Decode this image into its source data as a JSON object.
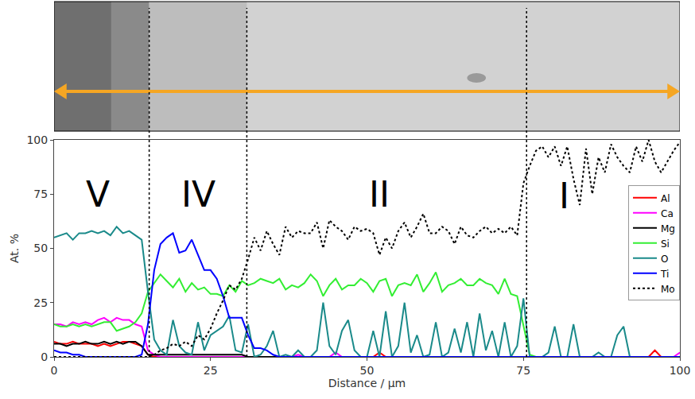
{
  "chart_data": {
    "type": "line",
    "xlabel": "Distance / μm",
    "ylabel": "At. %",
    "xlim": [
      0,
      100
    ],
    "ylim": [
      0,
      100
    ],
    "xticks": [
      0,
      25,
      50,
      75,
      100
    ],
    "yticks": [
      0,
      25,
      50,
      75,
      100
    ],
    "grid": false,
    "legend": "right",
    "boundaries": [
      15.2,
      30.8,
      75.5
    ],
    "annotations": [
      {
        "text": "V",
        "x": 7,
        "y": 75
      },
      {
        "text": "IV",
        "x": 23,
        "y": 75
      },
      {
        "text": "II",
        "x": 52,
        "y": 75
      },
      {
        "text": "I",
        "x": 81.5,
        "y": 74
      }
    ],
    "x": [
      0,
      1,
      2,
      3,
      4,
      5,
      6,
      7,
      8,
      9,
      10,
      11,
      12,
      13,
      14,
      15,
      16,
      17,
      18,
      19,
      20,
      21,
      22,
      23,
      24,
      25,
      26,
      27,
      28,
      29,
      30,
      31,
      32,
      33,
      34,
      35,
      36,
      37,
      38,
      39,
      40,
      41,
      42,
      43,
      44,
      45,
      46,
      47,
      48,
      49,
      50,
      51,
      52,
      53,
      54,
      55,
      56,
      57,
      58,
      59,
      60,
      61,
      62,
      63,
      64,
      65,
      66,
      67,
      68,
      69,
      70,
      71,
      72,
      73,
      74,
      75,
      76,
      77,
      78,
      79,
      80,
      81,
      82,
      83,
      84,
      85,
      86,
      87,
      88,
      89,
      90,
      91,
      92,
      93,
      94,
      95,
      96,
      97,
      98,
      99,
      100
    ],
    "series": [
      {
        "name": "Al",
        "color": "#ff0000",
        "line_style": "solid",
        "values": [
          7,
          6,
          6,
          7,
          6,
          6,
          6,
          5,
          6,
          5,
          6,
          7,
          7,
          6,
          5,
          1,
          0,
          0,
          0,
          0,
          0,
          0,
          0,
          0,
          0,
          0,
          0,
          0,
          0,
          0,
          0,
          0,
          0,
          0,
          0,
          0,
          0,
          0,
          0,
          0,
          0,
          0,
          0,
          0,
          0,
          0,
          0,
          0,
          0,
          0,
          0,
          0,
          2,
          0,
          0,
          0,
          0,
          0,
          0,
          0,
          0,
          0,
          0,
          0,
          0,
          0,
          0,
          0,
          0,
          0,
          0,
          0,
          0,
          0,
          0,
          0,
          0,
          0,
          0,
          0,
          0,
          0,
          0,
          0,
          0,
          0,
          0,
          0,
          0,
          0,
          0,
          0,
          0,
          0,
          0,
          0,
          3,
          0,
          0,
          0,
          0
        ]
      },
      {
        "name": "Ca",
        "color": "#ff00ff",
        "line_style": "solid",
        "values": [
          15,
          15,
          14,
          16,
          15,
          16,
          15,
          17,
          18,
          16,
          18,
          17,
          17,
          15,
          14,
          3,
          1,
          0,
          0,
          0,
          0,
          0,
          0,
          0,
          0,
          0,
          0,
          0,
          0,
          0,
          0,
          0,
          0,
          0,
          0,
          0,
          0,
          0,
          0,
          1,
          0,
          0,
          0,
          0,
          0,
          2,
          0,
          0,
          0,
          0,
          0,
          0,
          0,
          0,
          0,
          0,
          0,
          0,
          0,
          0,
          0,
          0,
          0,
          0,
          0,
          0,
          0,
          0,
          0,
          0,
          0,
          0,
          0,
          0,
          0,
          0,
          0,
          0,
          0,
          0,
          0,
          0,
          0,
          0,
          0,
          0,
          0,
          0,
          0,
          0,
          0,
          0,
          0,
          0,
          0,
          0,
          0,
          0,
          0,
          0,
          2
        ]
      },
      {
        "name": "Mg",
        "color": "#000000",
        "line_style": "solid",
        "values": [
          6,
          6,
          5,
          6,
          6,
          7,
          6,
          6,
          7,
          6,
          7,
          6,
          7,
          7,
          5,
          1,
          1,
          1,
          1,
          1,
          1,
          1,
          1,
          1,
          1,
          1,
          1,
          1,
          1,
          1,
          1,
          0,
          0,
          0,
          0,
          0,
          0,
          0,
          0,
          0,
          0,
          0,
          0,
          0,
          0,
          0,
          0,
          0,
          0,
          0,
          0,
          0,
          0,
          0,
          0,
          0,
          0,
          0,
          0,
          0,
          0,
          0,
          0,
          0,
          0,
          0,
          0,
          0,
          0,
          0,
          0,
          0,
          0,
          0,
          0,
          0,
          0,
          0,
          0,
          0,
          0,
          0,
          0,
          0,
          0,
          0,
          0,
          0,
          0,
          0,
          0,
          0,
          0,
          0,
          0,
          0,
          0,
          0,
          0,
          0,
          0
        ]
      },
      {
        "name": "Si",
        "color": "#33ee33",
        "line_style": "solid",
        "values": [
          15,
          14,
          14,
          15,
          14,
          15,
          14,
          15,
          16,
          16,
          12,
          13,
          14,
          16,
          20,
          30,
          34,
          38,
          35,
          32,
          36,
          30,
          34,
          31,
          32,
          29,
          29,
          28,
          33,
          30,
          35,
          33,
          34,
          36,
          35,
          34,
          36,
          31,
          33,
          32,
          34,
          38,
          35,
          28,
          33,
          36,
          31,
          33,
          33,
          36,
          34,
          30,
          35,
          36,
          28,
          33,
          34,
          33,
          38,
          30,
          34,
          39,
          30,
          33,
          34,
          36,
          33,
          33,
          36,
          34,
          33,
          29,
          36,
          29,
          28,
          14,
          1,
          0,
          0,
          0,
          0,
          0,
          0,
          0,
          0,
          0,
          0,
          0,
          0,
          0,
          0,
          0,
          0,
          0,
          0,
          0,
          0,
          0,
          0,
          0,
          0
        ]
      },
      {
        "name": "O",
        "color": "#1a8a8a",
        "line_style": "solid",
        "values": [
          55,
          56,
          57,
          54,
          57,
          57,
          58,
          57,
          58,
          56,
          60,
          57,
          58,
          56,
          54,
          30,
          8,
          3,
          1,
          17,
          5,
          2,
          1,
          16,
          3,
          10,
          12,
          14,
          19,
          3,
          2,
          15,
          0,
          1,
          5,
          12,
          0,
          1,
          0,
          3,
          0,
          0,
          3,
          25,
          5,
          1,
          12,
          17,
          3,
          0,
          0,
          12,
          0,
          21,
          0,
          5,
          25,
          2,
          10,
          0,
          1,
          16,
          0,
          2,
          13,
          2,
          16,
          0,
          20,
          3,
          12,
          0,
          16,
          0,
          5,
          27,
          0,
          0,
          0,
          2,
          14,
          0,
          0,
          15,
          0,
          0,
          0,
          2,
          0,
          0,
          10,
          14,
          0,
          0,
          0,
          0,
          0,
          0,
          0,
          0,
          0
        ]
      },
      {
        "name": "Ti",
        "color": "#0000ff",
        "line_style": "solid",
        "values": [
          3,
          2,
          2,
          1,
          1,
          0,
          0,
          0,
          0,
          0,
          0,
          0,
          0,
          0,
          1,
          15,
          40,
          52,
          55,
          57,
          48,
          49,
          54,
          47,
          40,
          40,
          36,
          28,
          18,
          18,
          18,
          10,
          4,
          4,
          3,
          1,
          0,
          0,
          0,
          0,
          0,
          0,
          0,
          0,
          0,
          0,
          0,
          0,
          0,
          0,
          0,
          0,
          0,
          0,
          0,
          0,
          0,
          0,
          0,
          0,
          0,
          0,
          0,
          0,
          0,
          0,
          0,
          0,
          0,
          0,
          0,
          0,
          0,
          0,
          0,
          0,
          0,
          0,
          0,
          0,
          0,
          0,
          0,
          0,
          0,
          0,
          0,
          0,
          0,
          0,
          0,
          0,
          0,
          0,
          0,
          0,
          0,
          0,
          0,
          0,
          0
        ]
      },
      {
        "name": "Mo",
        "color": "#000000",
        "line_style": "dotted",
        "values": [
          0,
          0,
          0,
          0,
          0,
          0,
          0,
          0,
          0,
          0,
          0,
          0,
          0,
          0,
          0,
          0,
          1,
          3,
          4,
          6,
          5,
          7,
          5,
          10,
          8,
          13,
          20,
          26,
          33,
          31,
          36,
          45,
          55,
          49,
          58,
          52,
          47,
          60,
          55,
          58,
          57,
          57,
          62,
          50,
          63,
          60,
          58,
          54,
          60,
          58,
          59,
          57,
          47,
          55,
          50,
          58,
          62,
          55,
          60,
          66,
          57,
          57,
          60,
          58,
          52,
          60,
          56,
          55,
          58,
          60,
          57,
          59,
          57,
          60,
          56,
          80,
          88,
          95,
          97,
          92,
          97,
          88,
          97,
          82,
          70,
          96,
          75,
          92,
          85,
          98,
          92,
          88,
          85,
          97,
          90,
          100,
          90,
          85,
          90,
          95,
          99
        ]
      }
    ]
  }
}
